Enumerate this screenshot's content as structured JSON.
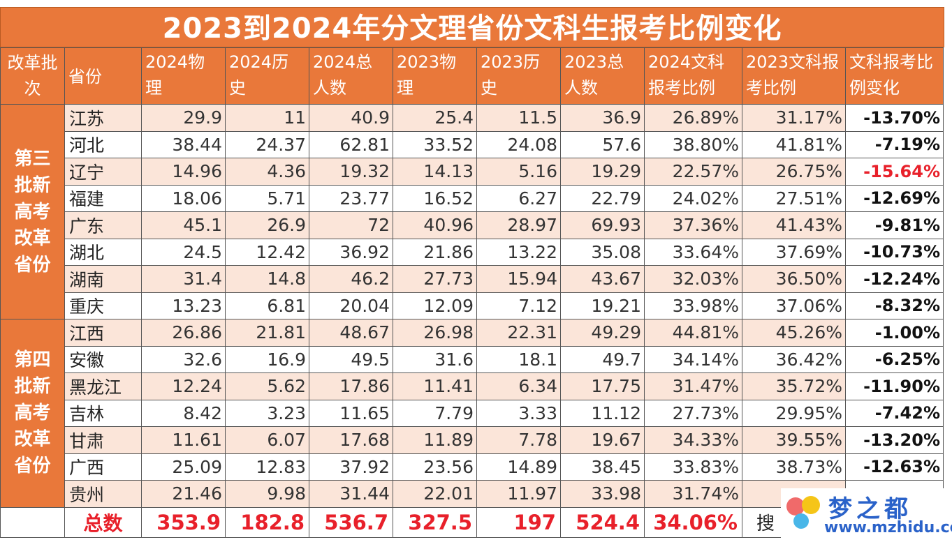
{
  "title": "2023到2024年分文理省份文科生报考比例变化",
  "headers": [
    "改革批次",
    "省份",
    "2024物理",
    "2024历史",
    "2024总人数",
    "2023物理",
    "2023历史",
    "2023总人数",
    "2024文科报考比例",
    "2023文科报考比例",
    "文科报考比例变化"
  ],
  "groups": [
    {
      "label": "第三批新高考改革省份",
      "rows": [
        {
          "province": "江苏",
          "p24": "29.9",
          "h24": "11",
          "t24": "40.9",
          "p23": "25.4",
          "h23": "11.5",
          "t23": "36.9",
          "r24": "26.89%",
          "r23": "31.17%",
          "chg": "-13.70%"
        },
        {
          "province": "河北",
          "p24": "38.44",
          "h24": "24.37",
          "t24": "62.81",
          "p23": "33.52",
          "h23": "24.08",
          "t23": "57.6",
          "r24": "38.80%",
          "r23": "41.81%",
          "chg": "-7.19%"
        },
        {
          "province": "辽宁",
          "p24": "14.96",
          "h24": "4.36",
          "t24": "19.32",
          "p23": "14.13",
          "h23": "5.16",
          "t23": "19.29",
          "r24": "22.57%",
          "r23": "26.75%",
          "chg": "-15.64%",
          "highlight": true
        },
        {
          "province": "福建",
          "p24": "18.06",
          "h24": "5.71",
          "t24": "23.77",
          "p23": "16.52",
          "h23": "6.27",
          "t23": "22.79",
          "r24": "24.02%",
          "r23": "27.51%",
          "chg": "-12.69%"
        },
        {
          "province": "广东",
          "p24": "45.1",
          "h24": "26.9",
          "t24": "72",
          "p23": "40.96",
          "h23": "28.97",
          "t23": "69.93",
          "r24": "37.36%",
          "r23": "41.43%",
          "chg": "-9.81%"
        },
        {
          "province": "湖北",
          "p24": "24.5",
          "h24": "12.42",
          "t24": "36.92",
          "p23": "21.86",
          "h23": "13.22",
          "t23": "35.08",
          "r24": "33.64%",
          "r23": "37.69%",
          "chg": "-10.73%"
        },
        {
          "province": "湖南",
          "p24": "31.4",
          "h24": "14.8",
          "t24": "46.2",
          "p23": "27.73",
          "h23": "15.94",
          "t23": "43.67",
          "r24": "32.03%",
          "r23": "36.50%",
          "chg": "-12.24%"
        },
        {
          "province": "重庆",
          "p24": "13.23",
          "h24": "6.81",
          "t24": "20.04",
          "p23": "12.09",
          "h23": "7.12",
          "t23": "19.21",
          "r24": "33.98%",
          "r23": "37.06%",
          "chg": "-8.32%"
        }
      ]
    },
    {
      "label": "第四批新高考改革省份",
      "rows": [
        {
          "province": "江西",
          "p24": "26.86",
          "h24": "21.81",
          "t24": "48.67",
          "p23": "26.98",
          "h23": "22.31",
          "t23": "49.29",
          "r24": "44.81%",
          "r23": "45.26%",
          "chg": "-1.00%"
        },
        {
          "province": "安徽",
          "p24": "32.6",
          "h24": "16.9",
          "t24": "49.5",
          "p23": "31.6",
          "h23": "18.1",
          "t23": "49.7",
          "r24": "34.14%",
          "r23": "36.42%",
          "chg": "-6.25%"
        },
        {
          "province": "黑龙江",
          "p24": "12.24",
          "h24": "5.62",
          "t24": "17.86",
          "p23": "11.41",
          "h23": "6.34",
          "t23": "17.75",
          "r24": "31.47%",
          "r23": "35.72%",
          "chg": "-11.90%"
        },
        {
          "province": "吉林",
          "p24": "8.42",
          "h24": "3.23",
          "t24": "11.65",
          "p23": "7.79",
          "h23": "3.33",
          "t23": "11.12",
          "r24": "27.73%",
          "r23": "29.95%",
          "chg": "-7.42%"
        },
        {
          "province": "甘肃",
          "p24": "11.61",
          "h24": "6.07",
          "t24": "17.68",
          "p23": "11.89",
          "h23": "7.78",
          "t23": "19.67",
          "r24": "34.33%",
          "r23": "39.55%",
          "chg": "-13.20%"
        },
        {
          "province": "广西",
          "p24": "25.09",
          "h24": "12.83",
          "t24": "37.92",
          "p23": "23.56",
          "h23": "14.89",
          "t23": "38.45",
          "r24": "33.83%",
          "r23": "38.73%",
          "chg": "-12.63%"
        },
        {
          "province": "贵州",
          "p24": "21.46",
          "h24": "9.98",
          "t24": "31.44",
          "p23": "22.01",
          "h23": "11.97",
          "t23": "33.98",
          "r24": "31.74%",
          "r23": "",
          "chg": ""
        }
      ]
    }
  ],
  "total": {
    "label": "总数",
    "p24": "353.9",
    "h24": "182.8",
    "t24": "536.7",
    "p23": "327.5",
    "h23": "197",
    "t23": "524.4",
    "r24": "34.06%"
  },
  "watermark": {
    "name": "梦之都",
    "url": "www.mzhidu.com",
    "left_text": "搜"
  },
  "colors": {
    "header_bg": "#e9783a",
    "stripe": "#fbe5d9",
    "highlight": "#e8202a"
  }
}
